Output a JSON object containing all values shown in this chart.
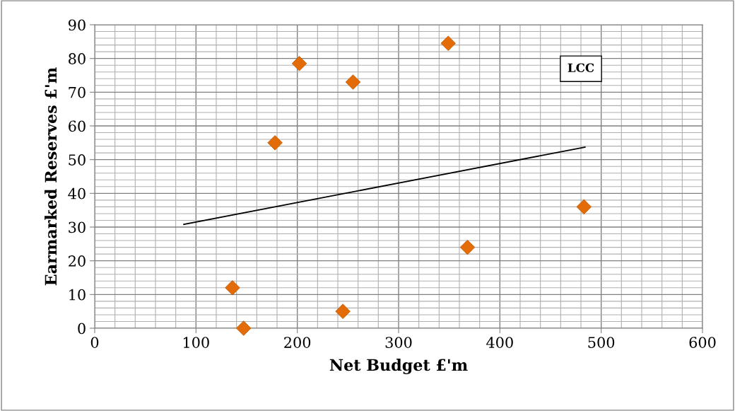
{
  "chart_data": {
    "type": "scatter",
    "xlabel": "Net Budget £'m",
    "ylabel": "Earmarked Reserves £'m",
    "annotations": [
      "LCC"
    ],
    "series": [
      {
        "color": "#e36c09",
        "marker": "diamond",
        "x": [
          136,
          147,
          178,
          202,
          245,
          255,
          349,
          368,
          483
        ],
        "values": [
          12,
          0,
          55,
          78.5,
          5,
          73,
          84.5,
          24,
          36
        ]
      },
      {
        "type": "line",
        "color": "#000000",
        "marker": "none",
        "line_style": "solid",
        "x": [
          88,
          484
        ],
        "values": [
          30.8,
          53.7
        ]
      }
    ],
    "xlim": [
      0,
      600
    ],
    "xticks": [
      0,
      100,
      200,
      300,
      400,
      500,
      600
    ],
    "ylim": [
      0,
      90
    ],
    "yticks": [
      0,
      10,
      20,
      30,
      40,
      50,
      60,
      70,
      80,
      90
    ],
    "grid": true,
    "legend": false
  }
}
